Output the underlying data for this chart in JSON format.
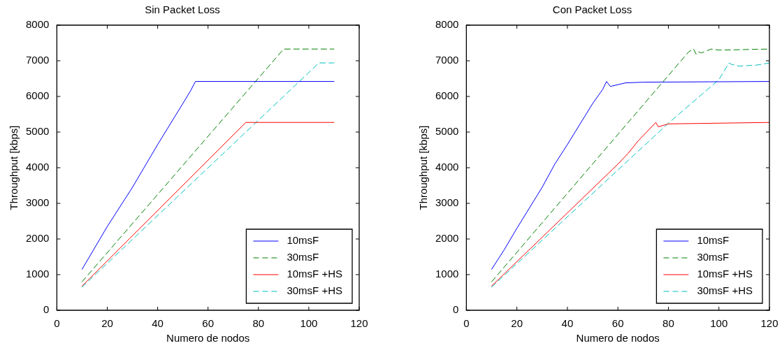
{
  "chart_data": [
    {
      "type": "line",
      "title": "Sin Packet Loss",
      "xlabel": "Numero de nodos",
      "ylabel": "Throughput [kbps]",
      "xlim": [
        0,
        120
      ],
      "xticks": [
        0,
        20,
        40,
        60,
        80,
        100,
        120
      ],
      "ylim": [
        0,
        8000
      ],
      "yticks": [
        0,
        1000,
        2000,
        3000,
        4000,
        5000,
        6000,
        7000,
        8000
      ],
      "grid": false,
      "legend": "bottom right",
      "marker": "none",
      "series": [
        {
          "name": "10msF",
          "color": "#0000ff",
          "line_style": "solid",
          "x": [
            10,
            20,
            30,
            40,
            50,
            53,
            55,
            110
          ],
          "values": [
            1150,
            2350,
            3450,
            4650,
            5800,
            6150,
            6420,
            6420
          ]
        },
        {
          "name": "30msF",
          "color": "#008000",
          "line_style": "dashed",
          "x": [
            10,
            90,
            110
          ],
          "values": [
            800,
            7330,
            7330
          ]
        },
        {
          "name": "10msF +HS",
          "color": "#ff0000",
          "line_style": "solid",
          "x": [
            10,
            75,
            110
          ],
          "values": [
            680,
            5270,
            5270
          ]
        },
        {
          "name": "30msF +HS",
          "color": "#00bfbf",
          "line_style": "dashed",
          "x": [
            10,
            104,
            110
          ],
          "values": [
            650,
            6940,
            6940
          ]
        }
      ]
    },
    {
      "type": "line",
      "title": "Con Packet Loss",
      "xlabel": "Numero de nodos",
      "ylabel": "Throughput [kbps]",
      "xlim": [
        0,
        120
      ],
      "xticks": [
        0,
        20,
        40,
        60,
        80,
        100,
        120
      ],
      "ylim": [
        0,
        8000
      ],
      "yticks": [
        0,
        1000,
        2000,
        3000,
        4000,
        5000,
        6000,
        7000,
        8000
      ],
      "grid": false,
      "legend": "bottom right",
      "marker": "none",
      "series": [
        {
          "name": "10msF",
          "color": "#0000ff",
          "line_style": "solid",
          "x": [
            10,
            15,
            20,
            30,
            35,
            40,
            50,
            54,
            55.5,
            57,
            60,
            63,
            70,
            120
          ],
          "values": [
            1150,
            1700,
            2300,
            3450,
            4100,
            4650,
            5800,
            6200,
            6420,
            6280,
            6330,
            6380,
            6400,
            6420
          ]
        },
        {
          "name": "30msF",
          "color": "#008000",
          "line_style": "dashed",
          "x": [
            10,
            88,
            90,
            91,
            92,
            93,
            97,
            100,
            120
          ],
          "values": [
            800,
            7250,
            7330,
            7180,
            7250,
            7220,
            7330,
            7300,
            7330
          ]
        },
        {
          "name": "10msF +HS",
          "color": "#ff0000",
          "line_style": "solid",
          "x": [
            10,
            60,
            64,
            68,
            75,
            76,
            80,
            120
          ],
          "values": [
            680,
            4100,
            4400,
            4750,
            5270,
            5150,
            5230,
            5270
          ]
        },
        {
          "name": "30msF +HS",
          "color": "#00bfbf",
          "line_style": "dashed",
          "x": [
            10,
            80,
            100,
            104,
            105,
            108,
            115,
            120
          ],
          "values": [
            650,
            5250,
            6470,
            6940,
            6900,
            6850,
            6880,
            6940
          ]
        }
      ]
    }
  ]
}
